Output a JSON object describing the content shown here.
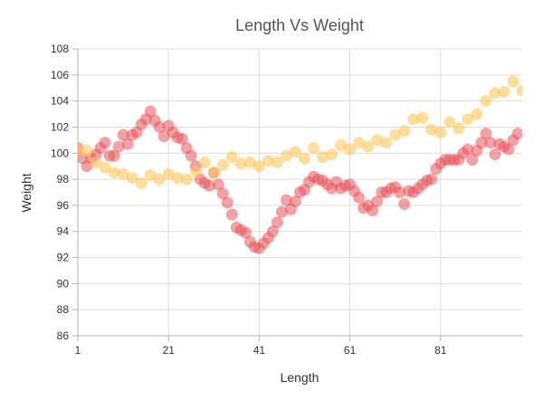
{
  "chart_data": {
    "type": "scatter",
    "title": "Length Vs Weight",
    "xlabel": "Length",
    "ylabel": "Weight",
    "xlim": [
      1,
      99
    ],
    "ylim": [
      86,
      108
    ],
    "x_ticks": [
      1,
      21,
      41,
      61,
      81
    ],
    "y_ticks": [
      86,
      88,
      90,
      92,
      94,
      96,
      98,
      100,
      102,
      104,
      106,
      108
    ],
    "grid": true,
    "legend": "none",
    "series": [
      {
        "color": "#e8535a",
        "opacity": 0.55,
        "points": [
          [
            1,
            100.4
          ],
          [
            2,
            99.6
          ],
          [
            3,
            99.0
          ],
          [
            4,
            99.6
          ],
          [
            5,
            99.9
          ],
          [
            6,
            100.4
          ],
          [
            7,
            100.8
          ],
          [
            8,
            99.8
          ],
          [
            9,
            99.8
          ],
          [
            10,
            100.5
          ],
          [
            11,
            101.4
          ],
          [
            12,
            100.7
          ],
          [
            13,
            101.4
          ],
          [
            14,
            101.6
          ],
          [
            15,
            102.2
          ],
          [
            16,
            102.6
          ],
          [
            17,
            103.2
          ],
          [
            18,
            102.5
          ],
          [
            19,
            102.0
          ],
          [
            20,
            101.3
          ],
          [
            21,
            102.1
          ],
          [
            22,
            101.6
          ],
          [
            23,
            101.2
          ],
          [
            24,
            101.1
          ],
          [
            25,
            100.4
          ],
          [
            26,
            99.8
          ],
          [
            27,
            99.0
          ],
          [
            28,
            98.0
          ],
          [
            29,
            97.7
          ],
          [
            30,
            97.5
          ],
          [
            31,
            98.5
          ],
          [
            32,
            97.6
          ],
          [
            33,
            96.9
          ],
          [
            34,
            96.2
          ],
          [
            35,
            95.3
          ],
          [
            36,
            94.3
          ],
          [
            37,
            94.1
          ],
          [
            38,
            93.9
          ],
          [
            39,
            93.2
          ],
          [
            40,
            92.8
          ],
          [
            41,
            92.7
          ],
          [
            42,
            93.1
          ],
          [
            43,
            93.5
          ],
          [
            44,
            94.0
          ],
          [
            45,
            94.7
          ],
          [
            46,
            95.5
          ],
          [
            47,
            96.4
          ],
          [
            48,
            95.7
          ],
          [
            49,
            96.3
          ],
          [
            50,
            97.0
          ],
          [
            51,
            97.2
          ],
          [
            52,
            97.8
          ],
          [
            53,
            98.2
          ],
          [
            54,
            98.0
          ],
          [
            55,
            97.9
          ],
          [
            56,
            97.6
          ],
          [
            57,
            97.3
          ],
          [
            58,
            97.8
          ],
          [
            59,
            97.3
          ],
          [
            60,
            97.5
          ],
          [
            61,
            97.6
          ],
          [
            62,
            97.1
          ],
          [
            63,
            96.6
          ],
          [
            64,
            95.8
          ],
          [
            65,
            96.0
          ],
          [
            66,
            95.6
          ],
          [
            67,
            96.3
          ],
          [
            68,
            97.0
          ],
          [
            69,
            97.0
          ],
          [
            70,
            97.3
          ],
          [
            71,
            97.4
          ],
          [
            72,
            97.0
          ],
          [
            73,
            96.1
          ],
          [
            74,
            97.1
          ],
          [
            75,
            97.0
          ],
          [
            76,
            97.3
          ],
          [
            77,
            97.6
          ],
          [
            78,
            97.9
          ],
          [
            79,
            98.0
          ],
          [
            80,
            98.8
          ],
          [
            81,
            99.2
          ],
          [
            82,
            99.5
          ],
          [
            83,
            99.5
          ],
          [
            84,
            99.5
          ],
          [
            85,
            99.5
          ],
          [
            86,
            100.0
          ],
          [
            87,
            100.3
          ],
          [
            88,
            99.5
          ],
          [
            89,
            100.2
          ],
          [
            90,
            100.8
          ],
          [
            91,
            101.5
          ],
          [
            92,
            100.8
          ],
          [
            93,
            99.9
          ],
          [
            94,
            100.7
          ],
          [
            95,
            100.5
          ],
          [
            96,
            100.3
          ],
          [
            97,
            101.0
          ],
          [
            98,
            101.5
          ]
        ]
      },
      {
        "color": "#ffc65c",
        "opacity": 0.6,
        "points": [
          [
            1,
            100.3
          ],
          [
            3,
            100.2
          ],
          [
            5,
            99.3
          ],
          [
            7,
            98.9
          ],
          [
            9,
            98.5
          ],
          [
            11,
            98.4
          ],
          [
            13,
            98.1
          ],
          [
            15,
            97.7
          ],
          [
            17,
            98.3
          ],
          [
            19,
            98.0
          ],
          [
            21,
            98.4
          ],
          [
            23,
            98.1
          ],
          [
            25,
            98.0
          ],
          [
            27,
            98.6
          ],
          [
            29,
            99.3
          ],
          [
            31,
            98.5
          ],
          [
            33,
            99.1
          ],
          [
            35,
            99.7
          ],
          [
            37,
            99.2
          ],
          [
            39,
            99.3
          ],
          [
            41,
            99.0
          ],
          [
            43,
            99.4
          ],
          [
            45,
            99.3
          ],
          [
            47,
            99.8
          ],
          [
            49,
            100.1
          ],
          [
            51,
            99.6
          ],
          [
            53,
            100.4
          ],
          [
            55,
            99.7
          ],
          [
            57,
            99.9
          ],
          [
            59,
            100.6
          ],
          [
            61,
            100.3
          ],
          [
            63,
            100.8
          ],
          [
            65,
            100.5
          ],
          [
            67,
            101.0
          ],
          [
            69,
            100.8
          ],
          [
            71,
            101.4
          ],
          [
            73,
            101.7
          ],
          [
            75,
            102.6
          ],
          [
            77,
            102.7
          ],
          [
            79,
            101.8
          ],
          [
            81,
            101.6
          ],
          [
            83,
            102.4
          ],
          [
            85,
            101.9
          ],
          [
            87,
            102.6
          ],
          [
            89,
            103.0
          ],
          [
            91,
            104.0
          ],
          [
            93,
            104.6
          ],
          [
            95,
            104.7
          ],
          [
            97,
            105.5
          ],
          [
            99,
            104.8
          ]
        ]
      }
    ]
  }
}
